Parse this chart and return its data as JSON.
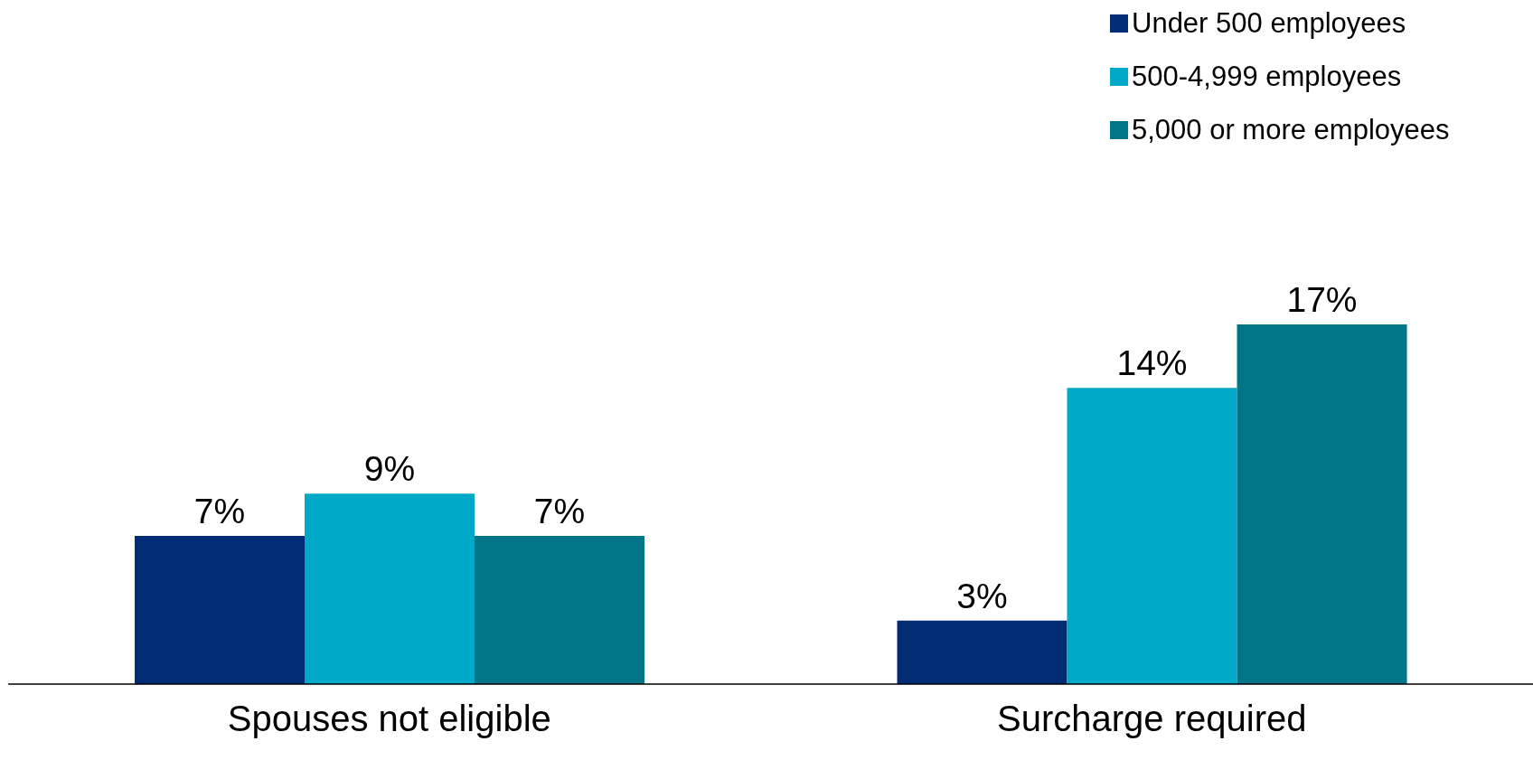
{
  "chart_data": {
    "type": "bar",
    "categories": [
      "Spouses not eligible",
      "Surcharge required"
    ],
    "series": [
      {
        "name": "Under 500 employees",
        "color": "#002b75",
        "values": [
          7,
          3
        ],
        "value_labels": [
          "7%",
          "3%"
        ]
      },
      {
        "name": "500-4,999 employees",
        "color": "#00a9c8",
        "values": [
          9,
          14
        ],
        "value_labels": [
          "9%",
          "14%"
        ]
      },
      {
        "name": "5,000 or more employees",
        "color": "#007588",
        "values": [
          7,
          17
        ],
        "value_labels": [
          "7%",
          "17%"
        ]
      }
    ],
    "legend": "top right",
    "grid": false
  }
}
